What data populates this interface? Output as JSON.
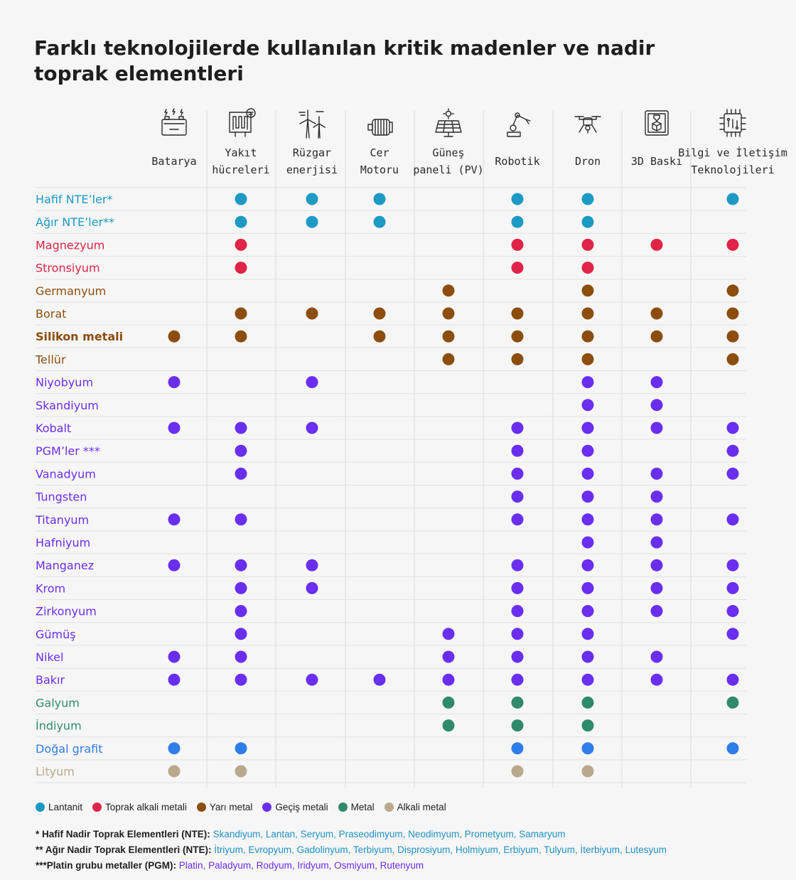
{
  "title": "Farklı teknolojilerde kullanılan kritik madenler ve nadir toprak elementleri",
  "colors": {
    "Lantanit": "#1c9ac4",
    "Toprak alkali metali": "#e02447",
    "Yarı metal": "#8c4d0d",
    "Geçiş metali": "#6a2ef0",
    "Metal": "#2f8a6c",
    "Alkali metal": "#b9a88c",
    "Doğal grafit": "#2f7de8"
  },
  "chart_data": {
    "type": "table",
    "columns": [
      {
        "lines": [
          "Batarya"
        ],
        "icon": "battery-icon"
      },
      {
        "lines": [
          "Yakıt",
          "hücreleri"
        ],
        "icon": "fuel-cell-icon"
      },
      {
        "lines": [
          "Rüzgar",
          "enerjisi"
        ],
        "icon": "wind-turbine-icon"
      },
      {
        "lines": [
          "Cer",
          "Motoru"
        ],
        "icon": "traction-motor-icon"
      },
      {
        "lines": [
          "Güneş",
          "paneli (PV)"
        ],
        "icon": "solar-panel-icon"
      },
      {
        "lines": [
          "Robotik"
        ],
        "icon": "robot-arm-icon"
      },
      {
        "lines": [
          "Dron"
        ],
        "icon": "drone-icon"
      },
      {
        "lines": [
          "3D Baskı"
        ],
        "icon": "3d-printer-icon"
      },
      {
        "lines": [
          "Bilgi ve İletişim",
          "Teknolojileri"
        ],
        "icon": "chip-icon"
      }
    ],
    "rows": [
      {
        "name": "Hafif NTE’ler*",
        "group": "Lantanit",
        "cols": [
          1,
          2,
          3,
          5,
          6,
          8
        ]
      },
      {
        "name": "Ağır NTE’ler**",
        "group": "Lantanit",
        "cols": [
          1,
          2,
          3,
          5,
          6
        ]
      },
      {
        "name": "Magnezyum",
        "group": "Toprak alkali metali",
        "cols": [
          1,
          5,
          6,
          7,
          8
        ]
      },
      {
        "name": "Stronsiyum",
        "group": "Toprak alkali metali",
        "cols": [
          1,
          5,
          6
        ]
      },
      {
        "name": "Germanyum",
        "group": "Yarı metal",
        "cols": [
          4,
          6,
          8
        ]
      },
      {
        "name": "Borat",
        "group": "Yarı metal",
        "cols": [
          1,
          2,
          3,
          4,
          5,
          6,
          7,
          8
        ]
      },
      {
        "name": "Silikon metali",
        "group": "Yarı metal",
        "cols": [
          0,
          1,
          3,
          4,
          5,
          6,
          7,
          8
        ]
      },
      {
        "name": "Tellür",
        "group": "Yarı metal",
        "cols": [
          4,
          5,
          6,
          8
        ]
      },
      {
        "name": "Niyobyum",
        "group": "Geçiş metali",
        "cols": [
          0,
          2,
          6,
          7
        ]
      },
      {
        "name": "Skandiyum",
        "group": "Geçiş metali",
        "cols": [
          6,
          7
        ]
      },
      {
        "name": "Kobalt",
        "group": "Geçiş metali",
        "cols": [
          0,
          1,
          2,
          5,
          6,
          7,
          8
        ]
      },
      {
        "name": "PGM’ler ***",
        "group": "Geçiş metali",
        "cols": [
          1,
          5,
          6,
          8
        ]
      },
      {
        "name": "Vanadyum",
        "group": "Geçiş metali",
        "cols": [
          1,
          5,
          6,
          7,
          8
        ]
      },
      {
        "name": "Tungsten",
        "group": "Geçiş metali",
        "cols": [
          5,
          6,
          7
        ]
      },
      {
        "name": "Titanyum",
        "group": "Geçiş metali",
        "cols": [
          0,
          1,
          5,
          6,
          7,
          8
        ]
      },
      {
        "name": "Hafniyum",
        "group": "Geçiş metali",
        "cols": [
          6,
          7
        ]
      },
      {
        "name": "Manganez",
        "group": "Geçiş metali",
        "cols": [
          0,
          1,
          2,
          5,
          6,
          7,
          8
        ]
      },
      {
        "name": "Krom",
        "group": "Geçiş metali",
        "cols": [
          1,
          2,
          5,
          6,
          7,
          8
        ]
      },
      {
        "name": "Zirkonyum",
        "group": "Geçiş metali",
        "cols": [
          1,
          5,
          6,
          7,
          8
        ]
      },
      {
        "name": "Gümüş",
        "group": "Geçiş metali",
        "cols": [
          1,
          4,
          5,
          6,
          8
        ]
      },
      {
        "name": "Nikel",
        "group": "Geçiş metali",
        "cols": [
          0,
          1,
          4,
          5,
          6,
          7
        ]
      },
      {
        "name": "Bakır",
        "group": "Geçiş metali",
        "cols": [
          0,
          1,
          2,
          3,
          4,
          5,
          6,
          7,
          8
        ]
      },
      {
        "name": "Galyum",
        "group": "Metal",
        "cols": [
          4,
          5,
          6,
          8
        ]
      },
      {
        "name": "İndiyum",
        "group": "Metal",
        "cols": [
          4,
          5,
          6
        ]
      },
      {
        "name": "Doğal grafit",
        "group": "Doğal grafit",
        "cols": [
          0,
          1,
          5,
          6,
          8
        ]
      },
      {
        "name": "Lityum",
        "group": "Alkali metal",
        "cols": [
          0,
          1,
          5,
          6
        ]
      }
    ]
  },
  "legend": [
    {
      "label": "Lantanit",
      "group": "Lantanit"
    },
    {
      "label": "Toprak alkali metali",
      "group": "Toprak alkali metali"
    },
    {
      "label": "Yarı metal",
      "group": "Yarı metal"
    },
    {
      "label": "Geçiş metali",
      "group": "Geçiş metali"
    },
    {
      "label": "Metal",
      "group": "Metal"
    },
    {
      "label": "Alkali metal",
      "group": "Alkali metal"
    }
  ],
  "notes": {
    "light_label": "* Hafif Nadir Toprak Elementleri (NTE):",
    "light_list": "Skandiyum, Lantan, Seryum, Praseodimyum, Neodimyum, Prometyum, Samaryum",
    "heavy_label": "** Ağır Nadir Toprak Elementleri (NTE):",
    "heavy_list": "İtriyum, Evropyum, Gadolinyum, Terbiyum, Disprosiyum, Holmiyum, Erbiyum, Tulyum, İterbiyum, Lutesyum",
    "pgm_label": "***Platin grubu metaller (PGM):",
    "pgm_list": "Platin, Paladyum, Rodyum, Iridyum, Osmiyum, Rutenyum"
  }
}
